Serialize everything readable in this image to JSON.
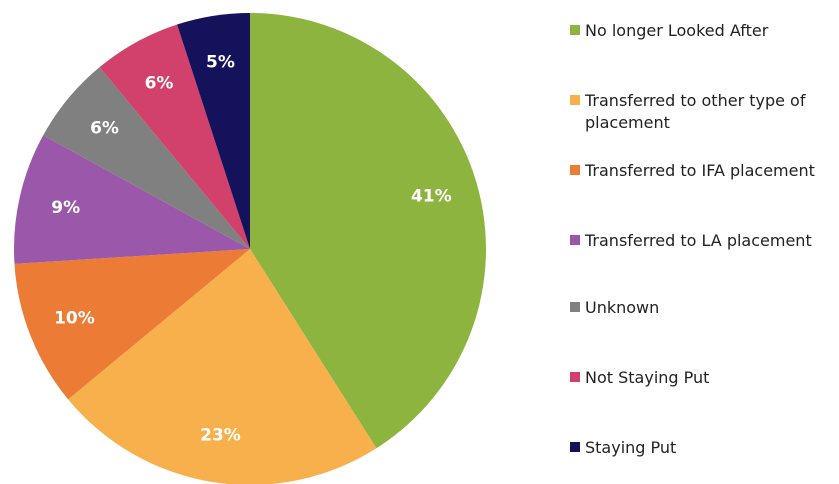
{
  "chart_data": {
    "type": "pie",
    "categories": [
      "No longer Looked After",
      "Transferred to other type of placement",
      "Transferred to IFA placement",
      "Transferred to LA placement",
      "Unknown",
      "Not Staying Put",
      "Staying Put"
    ],
    "values": [
      41,
      23,
      10,
      9,
      6,
      6,
      5
    ],
    "value_labels": [
      "41%",
      "23%",
      "10%",
      "9%",
      "6%",
      "6%",
      "5%"
    ],
    "colors": [
      "#8cb43e",
      "#f8b04c",
      "#ec7b35",
      "#9b58aa",
      "#808080",
      "#d1416b",
      "#15125c"
    ],
    "legend": "right"
  }
}
